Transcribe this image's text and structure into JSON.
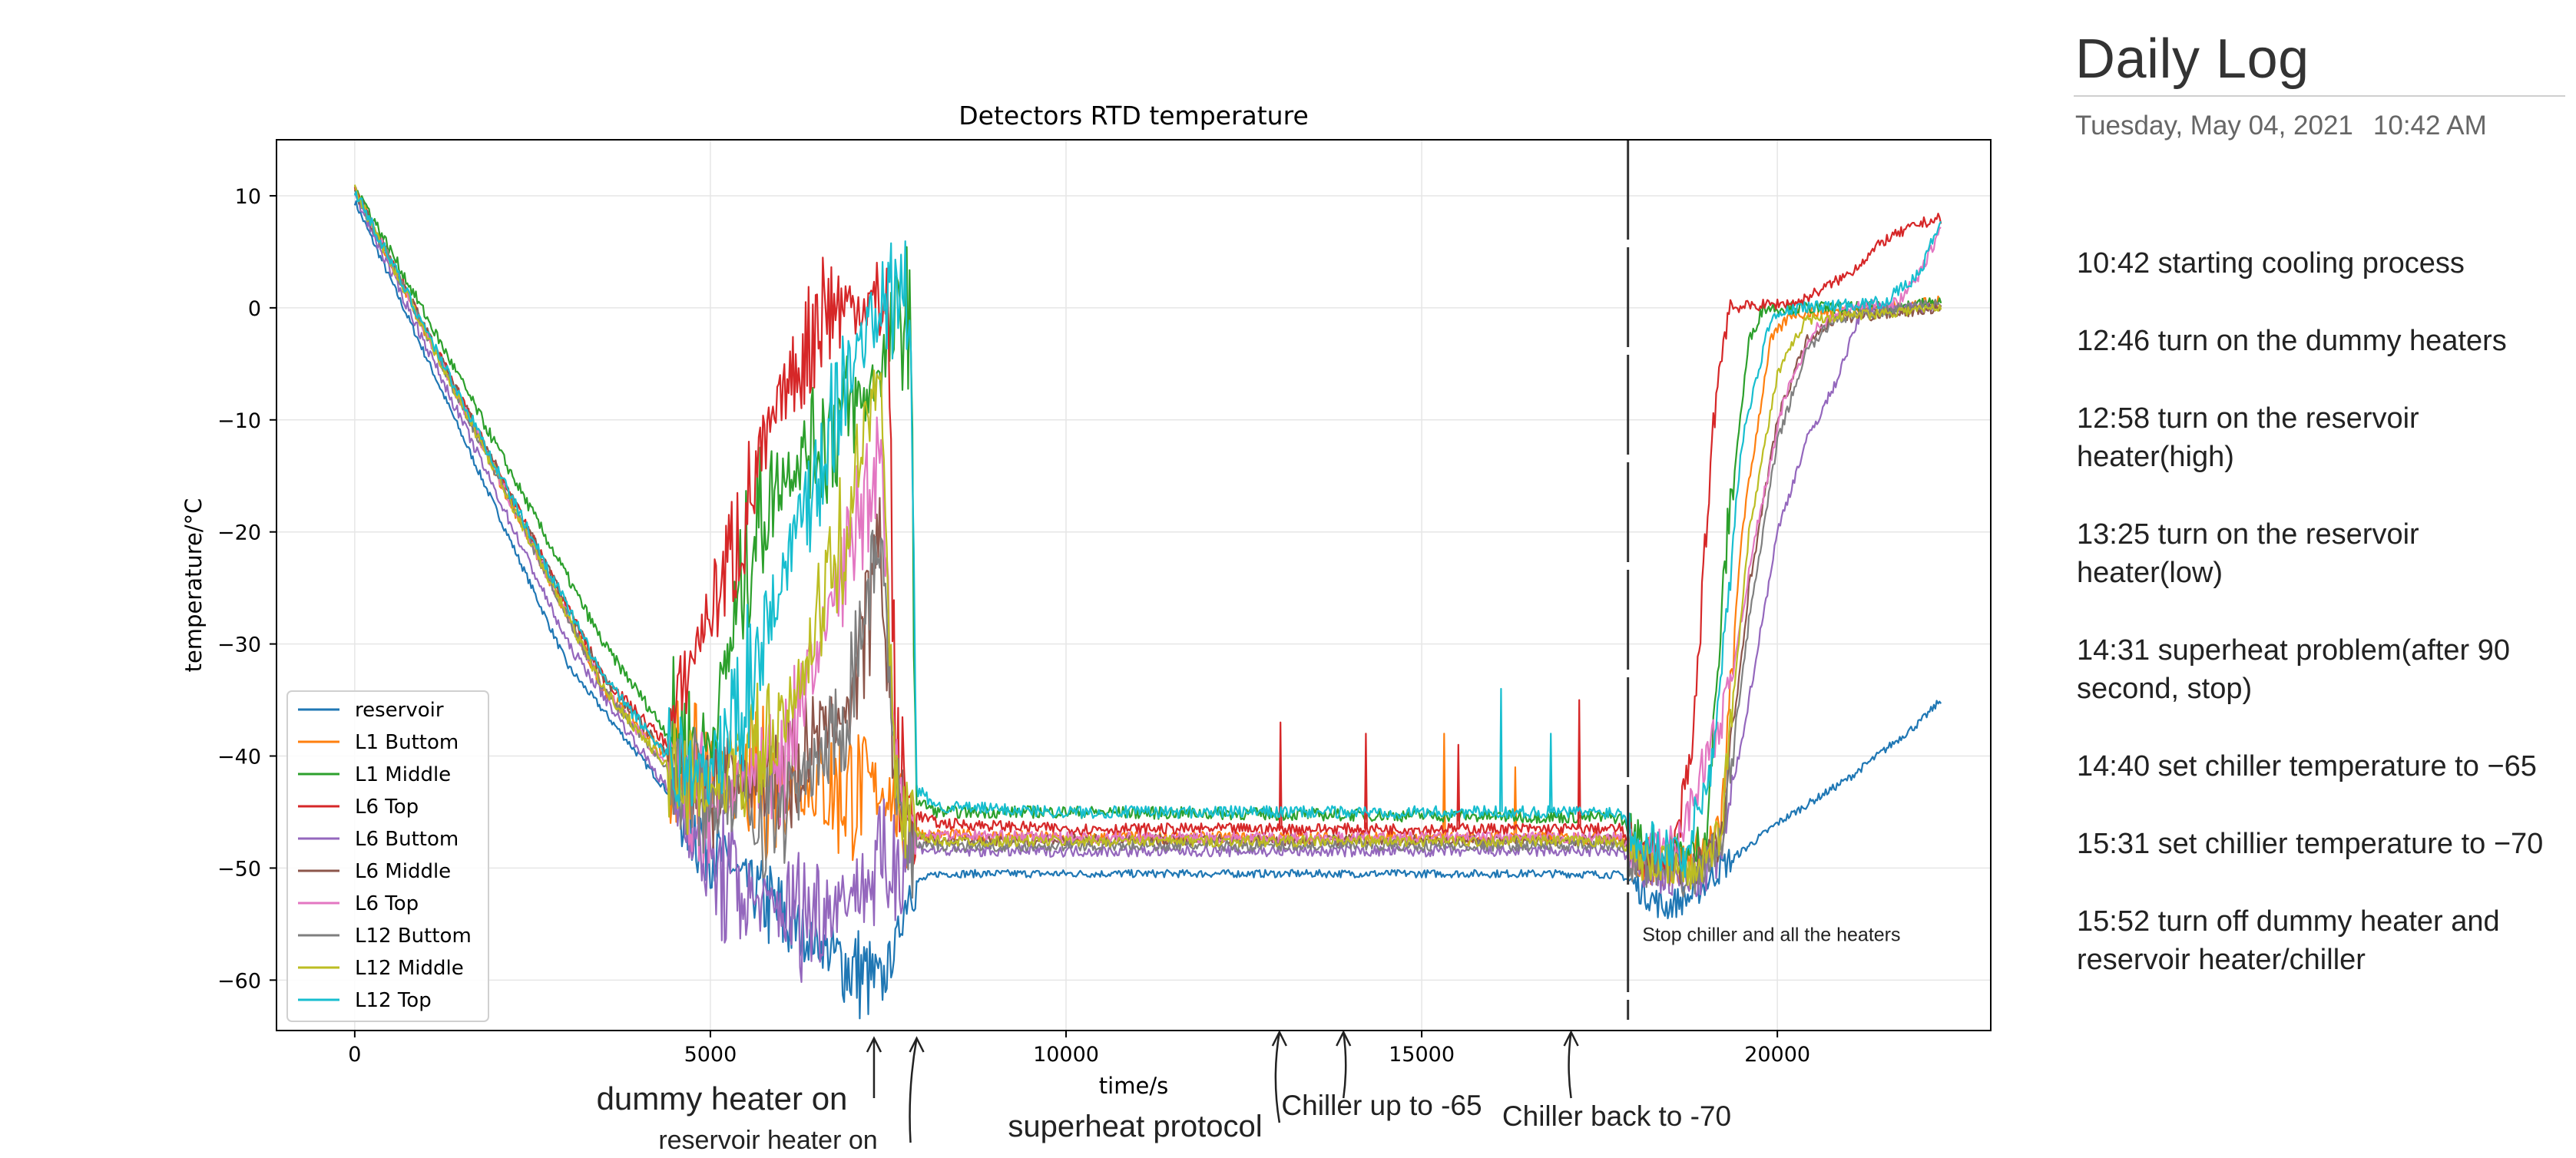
{
  "log": {
    "title": "Daily Log",
    "date": "Tuesday, May 04, 2021",
    "time": "10:42 AM",
    "entries": [
      "10:42  starting cooling process",
      "12:46 turn on the dummy heaters",
      "12:58 turn on the reservoir heater(high)",
      "13:25 turn on the reservoir heater(low)",
      "14:31 superheat problem(after 90 second, stop)",
      "14:40 set chiller temperature to −65",
      "15:31 set chillier temperature to −70",
      "15:52  turn off dummy heater and reservoir heater/chiller"
    ]
  },
  "chart_data": {
    "type": "line",
    "title": "Detectors RTD temperature",
    "xlabel": "time/s",
    "ylabel": "temperature/°C",
    "xlim": [
      -1100,
      23000
    ],
    "ylim": [
      -64.5,
      15
    ],
    "xticks": [
      0,
      5000,
      10000,
      15000,
      20000
    ],
    "yticks": [
      10,
      0,
      -10,
      -20,
      -30,
      -40,
      -50,
      -60
    ],
    "grid": true,
    "legend": "lower-left",
    "colors": {
      "reservoir": "#1f77b4",
      "L1 Buttom": "#ff7f0e",
      "L1 Middle": "#2ca02c",
      "L6 Top": "#d62728",
      "L6 Buttom": "#9467bd",
      "L6 Middle": "#8c564b",
      "L6 Top (2)": "#e377c2",
      "L12 Buttom": "#7f7f7f",
      "L12 Middle": "#bcbd22",
      "L12 Top": "#17becf"
    },
    "series": [
      {
        "name": "reservoir",
        "color": "#1f77b4",
        "points": [
          [
            0,
            9.5
          ],
          [
            3000,
            -32
          ],
          [
            5000,
            -48
          ],
          [
            6000,
            -54.5
          ],
          [
            7000,
            -59
          ],
          [
            7400,
            -60.5
          ],
          [
            7600,
            -57
          ],
          [
            7800,
            -51.5
          ],
          [
            8200,
            -50.5
          ],
          [
            10000,
            -50.5
          ],
          [
            13000,
            -50.5
          ],
          [
            17000,
            -50.5
          ],
          [
            17800,
            -50.6
          ],
          [
            18000,
            -51.5
          ],
          [
            18400,
            -53.5
          ],
          [
            18800,
            -52.5
          ],
          [
            19200,
            -50
          ],
          [
            20000,
            -46
          ],
          [
            21000,
            -42
          ],
          [
            21800,
            -38
          ],
          [
            22000,
            -37
          ],
          [
            22300,
            -35
          ]
        ],
        "noise": 0.35
      },
      {
        "name": "L1 Buttom",
        "color": "#ff7f0e",
        "points": [
          [
            0,
            10.5
          ],
          [
            3500,
            -34
          ],
          [
            4400,
            -40
          ],
          [
            5000,
            -42
          ],
          [
            7000,
            -43
          ],
          [
            7500,
            -43
          ],
          [
            7700,
            -46
          ],
          [
            8000,
            -47
          ],
          [
            10000,
            -47.3
          ],
          [
            17800,
            -47.3
          ],
          [
            18000,
            -49
          ],
          [
            18600,
            -50
          ],
          [
            19200,
            -47
          ],
          [
            19500,
            -20
          ],
          [
            19900,
            -3
          ],
          [
            20200,
            -0.5
          ],
          [
            21500,
            0
          ],
          [
            22300,
            0.5
          ]
        ],
        "noise": 0.55
      },
      {
        "name": "L1 Middle",
        "color": "#2ca02c",
        "points": [
          [
            0,
            11
          ],
          [
            3500,
            -30
          ],
          [
            4400,
            -38
          ],
          [
            5000,
            -39
          ],
          [
            5600,
            -20
          ],
          [
            6000,
            -15
          ],
          [
            6800,
            -10
          ],
          [
            7200,
            -8
          ],
          [
            7600,
            -2
          ],
          [
            7800,
            0
          ],
          [
            7900,
            -44
          ],
          [
            8200,
            -45
          ],
          [
            10000,
            -45
          ],
          [
            17800,
            -45.5
          ],
          [
            18000,
            -47.5
          ],
          [
            18800,
            -49
          ],
          [
            19000,
            -47
          ],
          [
            19300,
            -20
          ],
          [
            19600,
            -3
          ],
          [
            19800,
            0
          ],
          [
            21500,
            0
          ],
          [
            22300,
            0.5
          ]
        ],
        "noise": 0.55
      },
      {
        "name": "L6 Top",
        "color": "#d62728",
        "points": [
          [
            0,
            10.5
          ],
          [
            3500,
            -33
          ],
          [
            4400,
            -39
          ],
          [
            4800,
            -30
          ],
          [
            5200,
            -24
          ],
          [
            5600,
            -16
          ],
          [
            6000,
            -8
          ],
          [
            6400,
            -3
          ],
          [
            6500,
            0
          ],
          [
            7500,
            0.5
          ],
          [
            7600,
            -40
          ],
          [
            7800,
            -45
          ],
          [
            8200,
            -46
          ],
          [
            10000,
            -46.5
          ],
          [
            17800,
            -46.5
          ],
          [
            18000,
            -48.5
          ],
          [
            18500,
            -50
          ],
          [
            18800,
            -40
          ],
          [
            19100,
            -10
          ],
          [
            19300,
            0
          ],
          [
            20300,
            0.5
          ],
          [
            21000,
            3
          ],
          [
            21500,
            6
          ],
          [
            22000,
            7.5
          ],
          [
            22300,
            8
          ]
        ],
        "noise": 0.5
      },
      {
        "name": "L6 Buttom",
        "color": "#9467bd",
        "points": [
          [
            0,
            10
          ],
          [
            3000,
            -30
          ],
          [
            4400,
            -43
          ],
          [
            5000,
            -50
          ],
          [
            5600,
            -53
          ],
          [
            6400,
            -54
          ],
          [
            7000,
            -52
          ],
          [
            7500,
            -50
          ],
          [
            7800,
            -48
          ],
          [
            8200,
            -48.5
          ],
          [
            10000,
            -48.5
          ],
          [
            17800,
            -48.5
          ],
          [
            18000,
            -50
          ],
          [
            18800,
            -51.5
          ],
          [
            19200,
            -49
          ],
          [
            19600,
            -35
          ],
          [
            20000,
            -20
          ],
          [
            20400,
            -12
          ],
          [
            20800,
            -7
          ],
          [
            21200,
            0
          ],
          [
            22300,
            0
          ]
        ],
        "noise": 0.5
      },
      {
        "name": "L6 Middle",
        "color": "#8c564b",
        "points": [
          [
            0,
            10.5
          ],
          [
            3500,
            -33
          ],
          [
            4400,
            -40
          ],
          [
            5000,
            -43
          ],
          [
            6000,
            -42
          ],
          [
            7000,
            -35
          ],
          [
            7400,
            -22
          ],
          [
            7600,
            -42
          ],
          [
            7800,
            -47
          ],
          [
            8200,
            -47.5
          ],
          [
            10000,
            -47.5
          ],
          [
            17800,
            -47.5
          ],
          [
            18000,
            -49
          ],
          [
            18700,
            -50
          ],
          [
            19200,
            -48
          ],
          [
            19600,
            -25
          ],
          [
            20000,
            -10
          ],
          [
            20400,
            -3
          ],
          [
            20800,
            -1
          ],
          [
            22300,
            0
          ]
        ],
        "noise": 0.5
      },
      {
        "name": "L6 Top (2)",
        "color": "#e377c2",
        "points": [
          [
            0,
            10.5
          ],
          [
            3500,
            -34
          ],
          [
            4400,
            -41
          ],
          [
            5000,
            -44
          ],
          [
            6000,
            -40
          ],
          [
            6800,
            -25
          ],
          [
            7400,
            -12
          ],
          [
            7600,
            -40
          ],
          [
            7800,
            -47
          ],
          [
            8200,
            -47
          ],
          [
            10000,
            -47.3
          ],
          [
            17800,
            -47.3
          ],
          [
            18000,
            -49
          ],
          [
            18600,
            -48
          ],
          [
            18900,
            -42
          ],
          [
            19300,
            -35
          ],
          [
            19700,
            -20
          ],
          [
            20100,
            -8
          ],
          [
            20500,
            -2
          ],
          [
            21000,
            0
          ],
          [
            21700,
            0.5
          ],
          [
            22000,
            3
          ],
          [
            22300,
            7
          ]
        ],
        "noise": 0.5
      },
      {
        "name": "L12 Buttom",
        "color": "#7f7f7f",
        "points": [
          [
            0,
            10.5
          ],
          [
            3500,
            -34
          ],
          [
            4400,
            -41
          ],
          [
            5000,
            -44
          ],
          [
            6000,
            -45
          ],
          [
            6800,
            -38
          ],
          [
            7400,
            -20
          ],
          [
            7600,
            -42
          ],
          [
            7800,
            -48
          ],
          [
            8200,
            -48
          ],
          [
            10000,
            -48
          ],
          [
            17800,
            -48
          ],
          [
            18000,
            -49.5
          ],
          [
            18800,
            -51
          ],
          [
            19200,
            -48
          ],
          [
            19600,
            -28
          ],
          [
            20000,
            -12
          ],
          [
            20400,
            -4
          ],
          [
            20800,
            -1
          ],
          [
            22300,
            0.5
          ]
        ],
        "noise": 0.5
      },
      {
        "name": "L12 Middle",
        "color": "#bcbd22",
        "points": [
          [
            0,
            10.5
          ],
          [
            3500,
            -34
          ],
          [
            4400,
            -41
          ],
          [
            5000,
            -43
          ],
          [
            6000,
            -38
          ],
          [
            6800,
            -22
          ],
          [
            7400,
            -5
          ],
          [
            7600,
            -44
          ],
          [
            7800,
            -47
          ],
          [
            8200,
            -47.6
          ],
          [
            10000,
            -47.6
          ],
          [
            17800,
            -47.6
          ],
          [
            18000,
            -49
          ],
          [
            18800,
            -50.5
          ],
          [
            19200,
            -47
          ],
          [
            19600,
            -20
          ],
          [
            20000,
            -6
          ],
          [
            20400,
            -1
          ],
          [
            22300,
            0
          ]
        ],
        "noise": 0.5
      },
      {
        "name": "L12 Top",
        "color": "#17becf",
        "points": [
          [
            0,
            10.5
          ],
          [
            3500,
            -33
          ],
          [
            4400,
            -40
          ],
          [
            5000,
            -42
          ],
          [
            5600,
            -32
          ],
          [
            6200,
            -20
          ],
          [
            6800,
            -8
          ],
          [
            7200,
            -2
          ],
          [
            7400,
            0
          ],
          [
            7800,
            1
          ],
          [
            7900,
            -43
          ],
          [
            8200,
            -44.5
          ],
          [
            10000,
            -45
          ],
          [
            17800,
            -45
          ],
          [
            18000,
            -47
          ],
          [
            18700,
            -49
          ],
          [
            19100,
            -40
          ],
          [
            19500,
            -12
          ],
          [
            19900,
            -1
          ],
          [
            20300,
            0
          ],
          [
            21500,
            0.5
          ],
          [
            22000,
            3
          ],
          [
            22300,
            8
          ]
        ],
        "noise": 0.55
      }
    ],
    "spikes": [
      {
        "x": 13000,
        "series": "L6 Top",
        "y": -37
      },
      {
        "x": 14200,
        "series": "L6 Top",
        "y": -38
      },
      {
        "x": 15300,
        "series": "L1 Buttom",
        "y": -38
      },
      {
        "x": 15500,
        "series": "L6 Top",
        "y": -39
      },
      {
        "x": 16100,
        "series": "L12 Top",
        "y": -34
      },
      {
        "x": 16300,
        "series": "L1 Buttom",
        "y": -41
      },
      {
        "x": 16800,
        "series": "L12 Top",
        "y": -38
      },
      {
        "x": 17200,
        "series": "L6 Top",
        "y": -35
      }
    ],
    "vline": {
      "x": 17900
    },
    "legend_entries": [
      "reservoir",
      "L1 Buttom",
      "L1 Middle",
      "L6 Top",
      "L6 Buttom",
      "L6 Middle",
      "L6 Top",
      "L12 Buttom",
      "L12 Middle",
      "L12 Top"
    ],
    "inner_annotation": {
      "text": "Stop chiller and all the heaters",
      "x": 18100,
      "y": -56.5
    },
    "annotations": [
      {
        "text": "dummy heater on",
        "arrow_x": 7300
      },
      {
        "text": "reservoir heater on",
        "arrow_x": 7900
      },
      {
        "text": "superheat protocol",
        "arrow_x": 13000
      },
      {
        "text": "Chiller up to -65",
        "arrow_x": 13900
      },
      {
        "text": "Chiller back to -70",
        "arrow_x": 17100
      }
    ]
  }
}
